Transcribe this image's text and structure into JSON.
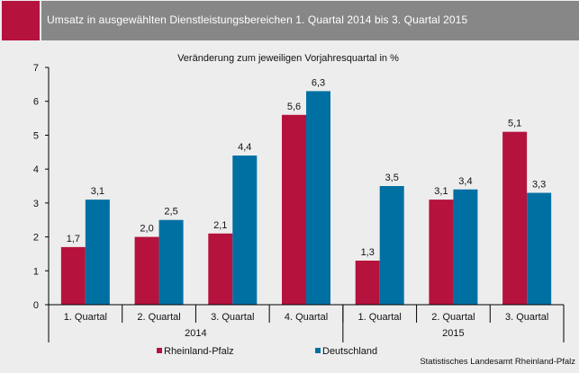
{
  "header": {
    "title": "Umsatz in ausgewählten Dienstleistungsbereichen 1. Quartal 2014 bis 3. Quartal 2015"
  },
  "source": "Statistisches Landesamt Rheinland-Pfalz",
  "chart_data": {
    "type": "bar",
    "title": "Umsatz in ausgewählten Dienstleistungsbereichen 1. Quartal 2014 bis 3. Quartal 2015",
    "subtitle": "Veränderung zum jeweiligen Vorjahresquartal  in %",
    "xlabel": "",
    "ylabel": "",
    "ylim": [
      0,
      7
    ],
    "yticks": [
      0,
      1,
      2,
      3,
      4,
      5,
      6,
      7
    ],
    "grid": false,
    "categories": [
      "1. Quartal",
      "2. Quartal",
      "3. Quartal",
      "4. Quartal",
      "1. Quartal",
      "2. Quartal",
      "3. Quartal"
    ],
    "category_groups": [
      {
        "label": "2014",
        "count": 4
      },
      {
        "label": "2015",
        "count": 3
      }
    ],
    "series": [
      {
        "name": "Rheinland-Pfalz",
        "color": "#b5123e",
        "values": [
          1.7,
          2.0,
          2.1,
          5.6,
          1.3,
          3.1,
          5.1
        ],
        "labels": [
          "1,7",
          "2,0",
          "2,1",
          "5,6",
          "1,3",
          "3,1",
          "5,1"
        ]
      },
      {
        "name": "Deutschland",
        "color": "#0070a3",
        "values": [
          3.1,
          2.5,
          4.4,
          6.3,
          3.5,
          3.4,
          3.3
        ],
        "labels": [
          "3,1",
          "2,5",
          "4,4",
          "6,3",
          "3,5",
          "3,4",
          "3,3"
        ]
      }
    ],
    "legend_position": "bottom"
  }
}
